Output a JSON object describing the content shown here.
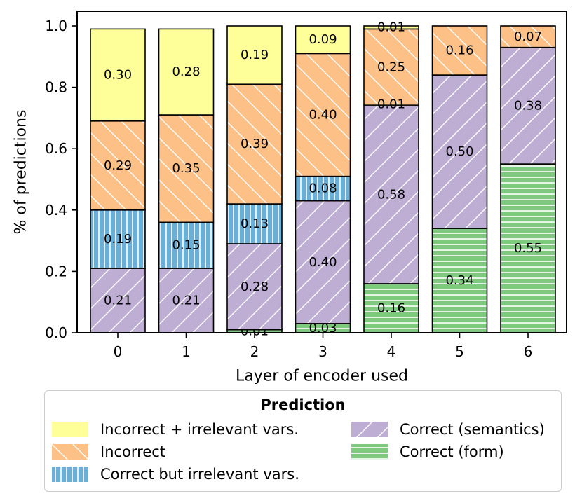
{
  "chart_data": {
    "type": "bar",
    "stacked": true,
    "xlabel": "Layer of encoder used",
    "ylabel": "% of predictions",
    "ylim": [
      0,
      1.0
    ],
    "yticks": [
      "0.0",
      "0.2",
      "0.4",
      "0.6",
      "0.8",
      "1.0"
    ],
    "categories": [
      "0",
      "1",
      "2",
      "3",
      "4",
      "5",
      "6"
    ],
    "series": [
      {
        "name": "Correct (form)",
        "color": "#7fc97f",
        "hatch": "horizontal",
        "values": [
          0.0,
          0.0,
          0.01,
          0.03,
          0.16,
          0.34,
          0.55
        ],
        "labels": [
          "",
          "",
          "0.01",
          "0.03",
          "0.16",
          "0.34",
          "0.55"
        ]
      },
      {
        "name": "Correct (semantics)",
        "color": "#beaed4",
        "hatch": "diagonal-up",
        "values": [
          0.21,
          0.21,
          0.28,
          0.4,
          0.58,
          0.5,
          0.38
        ],
        "labels": [
          "0.21",
          "0.21",
          "0.28",
          "0.40",
          "0.58",
          "0.50",
          "0.38"
        ]
      },
      {
        "name": "Correct but irrelevant vars.",
        "color": "#6baed6",
        "hatch": "vertical",
        "values": [
          0.19,
          0.15,
          0.13,
          0.08,
          0.0,
          0.0,
          0.0
        ],
        "labels": [
          "0.19",
          "0.15",
          "0.13",
          "0.08",
          "",
          "",
          ""
        ]
      },
      {
        "name": "Incorrect",
        "color": "#fdc086",
        "hatch": "diagonal-down",
        "values": [
          0.29,
          0.35,
          0.39,
          0.4,
          0.25,
          0.16,
          0.07
        ],
        "labels": [
          "0.29",
          "0.35",
          "0.39",
          "0.40",
          "0.25",
          "0.16",
          "0.07"
        ]
      },
      {
        "name": "Incorrect + irrelevant vars.",
        "color": "#ffff99",
        "hatch": "none",
        "values": [
          0.3,
          0.28,
          0.19,
          0.09,
          0.01,
          0.0,
          0.0
        ],
        "labels": [
          "0.30",
          "0.28",
          "0.19",
          "0.09",
          "0.01",
          "",
          ""
        ]
      }
    ],
    "extra_annotations": [
      {
        "category": "4",
        "segment": "between semantics and incorrect",
        "text": "0.01"
      }
    ],
    "legend": {
      "title": "Prediction",
      "placement": "bottom",
      "order": [
        "Incorrect + irrelevant vars.",
        "Incorrect",
        "Correct but irrelevant vars.",
        "Correct (semantics)",
        "Correct (form)"
      ]
    }
  },
  "legend_labels": {
    "title": "Prediction",
    "incorrect_irrelevant": "Incorrect + irrelevant vars.",
    "incorrect": "Incorrect",
    "correct_irrelevant": "Correct but irrelevant vars.",
    "correct_semantics": "Correct (semantics)",
    "correct_form": "Correct (form)"
  }
}
